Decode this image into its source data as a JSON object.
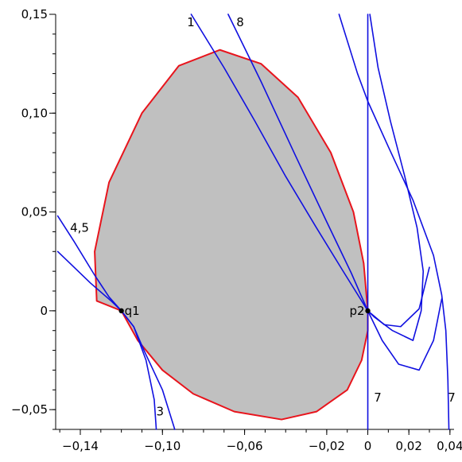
{
  "chart_data": {
    "type": "line",
    "title": "",
    "xlabel": "",
    "ylabel": "",
    "xlim": [
      -0.152,
      0.042
    ],
    "ylim": [
      -0.06,
      0.15
    ],
    "grid": false,
    "x_ticks": [
      {
        "value": -0.14,
        "label": "−0,14"
      },
      {
        "value": -0.1,
        "label": "−0,10"
      },
      {
        "value": -0.06,
        "label": "−0,06"
      },
      {
        "value": -0.02,
        "label": "−0,02"
      },
      {
        "value": 0,
        "label": "0"
      },
      {
        "value": 0.02,
        "label": "0,02"
      },
      {
        "value": 0.04,
        "label": "0,04"
      }
    ],
    "y_ticks": [
      {
        "value": 0.15,
        "label": "0,15"
      },
      {
        "value": 0.1,
        "label": "0,10"
      },
      {
        "value": 0.05,
        "label": "0,05"
      },
      {
        "value": 0,
        "label": "0"
      },
      {
        "value": -0.05,
        "label": "−0,05"
      }
    ],
    "colors": {
      "region_fill": "#c0c0c0",
      "boundary": "#e8141c",
      "curves": "#1010e0",
      "axes": "#000000"
    },
    "region": {
      "name": "shaded-region",
      "points": [
        [
          0.0,
          0.0
        ],
        [
          -0.002,
          0.024
        ],
        [
          -0.007,
          0.05
        ],
        [
          -0.018,
          0.08
        ],
        [
          -0.034,
          0.108
        ],
        [
          -0.052,
          0.125
        ],
        [
          -0.072,
          0.132
        ],
        [
          -0.092,
          0.124
        ],
        [
          -0.11,
          0.1
        ],
        [
          -0.126,
          0.065
        ],
        [
          -0.133,
          0.03
        ],
        [
          -0.132,
          0.005
        ],
        [
          -0.12,
          0.0
        ],
        [
          -0.112,
          -0.015
        ],
        [
          -0.1,
          -0.03
        ],
        [
          -0.085,
          -0.042
        ],
        [
          -0.065,
          -0.051
        ],
        [
          -0.042,
          -0.055
        ],
        [
          -0.025,
          -0.051
        ],
        [
          -0.01,
          -0.04
        ],
        [
          -0.003,
          -0.025
        ],
        [
          0.0,
          -0.01
        ],
        [
          0.0,
          0.0
        ]
      ]
    },
    "series": [
      {
        "label": "1",
        "points": [
          [
            -0.086,
            0.15
          ],
          [
            -0.07,
            0.123
          ],
          [
            -0.055,
            0.096
          ],
          [
            -0.04,
            0.068
          ],
          [
            -0.025,
            0.042
          ],
          [
            -0.012,
            0.02
          ],
          [
            0.0,
            0.0
          ],
          [
            0.008,
            -0.007
          ],
          [
            0.016,
            -0.008
          ],
          [
            0.025,
            0.001
          ],
          [
            0.03,
            0.022
          ]
        ]
      },
      {
        "label": "8",
        "points": [
          [
            -0.068,
            0.15
          ],
          [
            -0.052,
            0.116
          ],
          [
            -0.035,
            0.078
          ],
          [
            -0.02,
            0.045
          ],
          [
            -0.008,
            0.019
          ],
          [
            0.0,
            0.0
          ],
          [
            0.007,
            -0.015
          ],
          [
            0.015,
            -0.027
          ],
          [
            0.025,
            -0.03
          ],
          [
            0.032,
            -0.015
          ],
          [
            0.036,
            0.006
          ]
        ]
      },
      {
        "label": "",
        "points": [
          [
            -0.014,
            0.15
          ],
          [
            -0.005,
            0.12
          ],
          [
            0.0,
            0.106
          ],
          [
            0.01,
            0.083
          ],
          [
            0.022,
            0.056
          ],
          [
            0.032,
            0.028
          ],
          [
            0.036,
            0.008
          ],
          [
            0.038,
            -0.01
          ],
          [
            0.039,
            -0.035
          ],
          [
            0.0395,
            -0.06
          ]
        ]
      },
      {
        "label": "",
        "points": [
          [
            0.001,
            0.15
          ],
          [
            0.005,
            0.123
          ],
          [
            0.011,
            0.096
          ],
          [
            0.018,
            0.068
          ],
          [
            0.024,
            0.042
          ],
          [
            0.027,
            0.02
          ],
          [
            0.026,
            0.0
          ],
          [
            0.022,
            -0.015
          ],
          [
            0.012,
            -0.01
          ],
          [
            0.003,
            -0.003
          ],
          [
            0.0,
            0.0
          ]
        ]
      },
      {
        "label": "7",
        "points": [
          [
            0.0,
            0.15
          ],
          [
            0.0,
            -0.06
          ]
        ]
      },
      {
        "label": "3",
        "points": [
          [
            -0.151,
            0.03
          ],
          [
            -0.145,
            0.024
          ],
          [
            -0.135,
            0.014
          ],
          [
            -0.125,
            0.005
          ],
          [
            -0.12,
            0.0
          ],
          [
            -0.114,
            -0.008
          ],
          [
            -0.108,
            -0.025
          ],
          [
            -0.104,
            -0.045
          ],
          [
            -0.103,
            -0.06
          ]
        ]
      },
      {
        "label": "4,5",
        "points": [
          [
            -0.151,
            0.048
          ],
          [
            -0.143,
            0.035
          ],
          [
            -0.133,
            0.018
          ],
          [
            -0.126,
            0.007
          ],
          [
            -0.12,
            0.0
          ],
          [
            -0.114,
            -0.008
          ],
          [
            -0.109,
            -0.02
          ],
          [
            -0.1,
            -0.04
          ],
          [
            -0.094,
            -0.06
          ]
        ]
      }
    ],
    "curve_labels": [
      {
        "text": "1",
        "x": -0.088,
        "y": 0.144
      },
      {
        "text": "8",
        "x": -0.064,
        "y": 0.144
      },
      {
        "text": "4,5",
        "x": -0.145,
        "y": 0.04
      },
      {
        "text": "3",
        "x": -0.103,
        "y": -0.053
      },
      {
        "text": "7",
        "x": 0.003,
        "y": -0.046
      },
      {
        "text": "7",
        "x": 0.039,
        "y": -0.046
      }
    ],
    "points": [
      {
        "label": "q1",
        "x": -0.12,
        "y": 0.0
      },
      {
        "label": "p2",
        "x": 0.0,
        "y": 0.0
      }
    ]
  }
}
